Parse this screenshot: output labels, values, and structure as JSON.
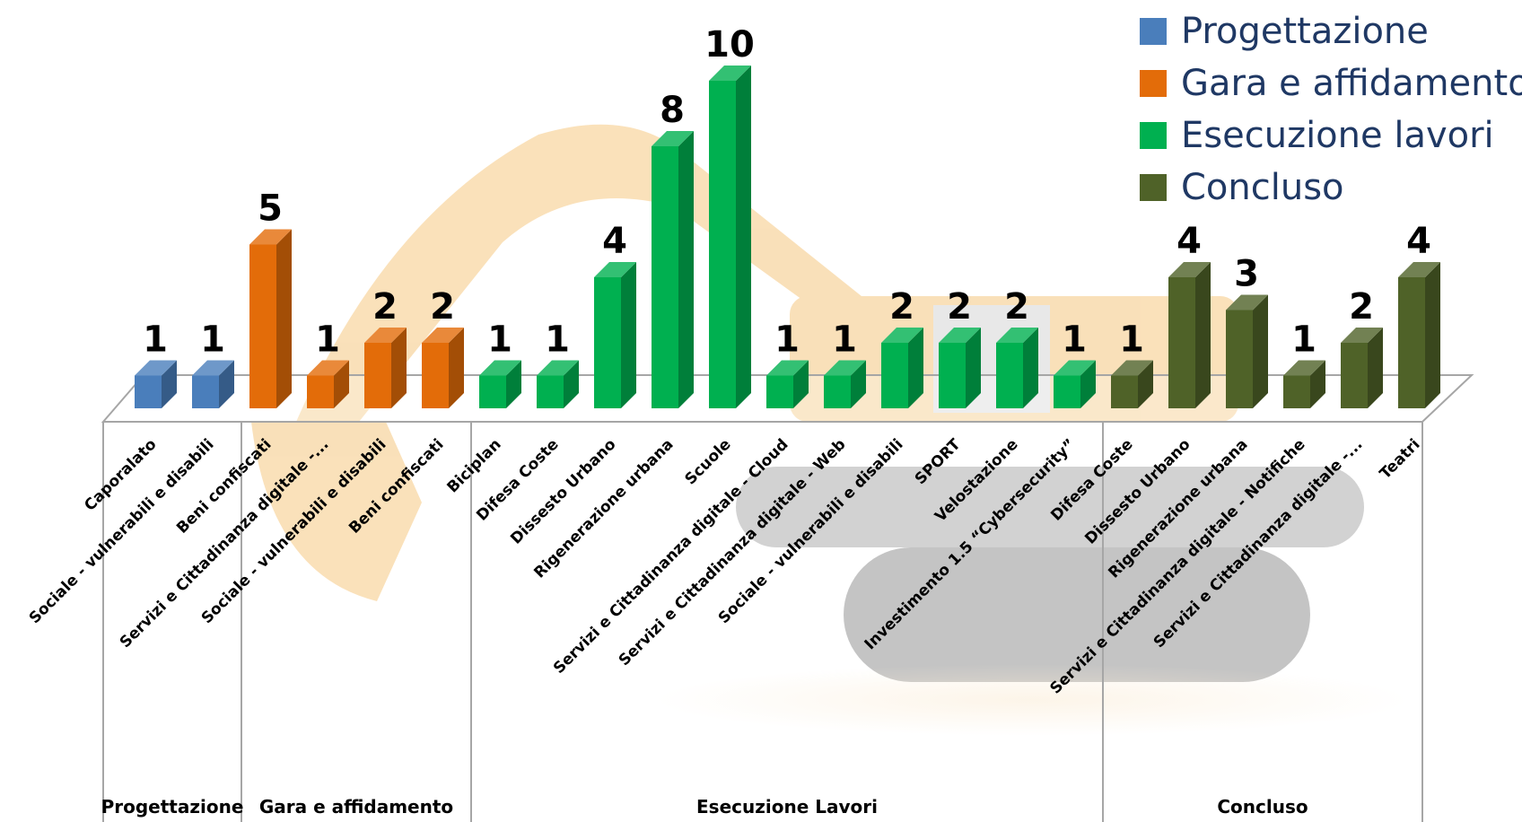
{
  "chart_data": {
    "type": "bar",
    "title": "",
    "xlabel": "",
    "ylabel": "",
    "ylim": [
      0,
      10
    ],
    "grid": false,
    "legend_position": "top-right",
    "colors": {
      "Progettazione": "#4a7ebb",
      "Gara e affidamento": "#e36c09",
      "Esecuzione lavori": "#00b050",
      "Concluso": "#4f6228"
    },
    "legend": [
      "Progettazione",
      "Gara e affidamento",
      "Esecuzione lavori",
      "Concluso"
    ],
    "groups": [
      {
        "label": "Progettazione",
        "series": "Progettazione",
        "categories": [
          "Caporalato",
          "Sociale - vulnerabili e disabili"
        ],
        "values": [
          1,
          1
        ]
      },
      {
        "label": "Gara e affidamento",
        "series": "Gara e affidamento",
        "categories": [
          "Beni confiscati",
          "Servizi e Cittadinanza digitale -...",
          "Sociale - vulnerabili e disabili",
          "Beni confiscati"
        ],
        "values": [
          5,
          1,
          2,
          2
        ]
      },
      {
        "label": "Esecuzione Lavori",
        "series": "Esecuzione lavori",
        "categories": [
          "Biciplan",
          "Difesa Coste",
          "Dissesto Urbano",
          "Rigenerazione urbana",
          "Scuole",
          "Servizi e Cittadinanza digitale - Cloud",
          "Servizi e Cittadinanza digitale - Web",
          "Sociale - vulnerabili e disabili",
          "SPORT",
          "Velostazione",
          "Investimento 1.5 “Cybersecurity”"
        ],
        "values": [
          1,
          1,
          4,
          8,
          10,
          1,
          1,
          2,
          2,
          2,
          1
        ]
      },
      {
        "label": "Concluso",
        "series": "Concluso",
        "categories": [
          "Difesa Coste",
          "Dissesto Urbano",
          "Rigenerazione urbana",
          "Servizi e Cittadinanza digitale - Notifiche",
          "Servizi e Cittadinanza digitale -...",
          "Teatri"
        ],
        "values": [
          1,
          4,
          3,
          1,
          2,
          4
        ]
      }
    ]
  }
}
